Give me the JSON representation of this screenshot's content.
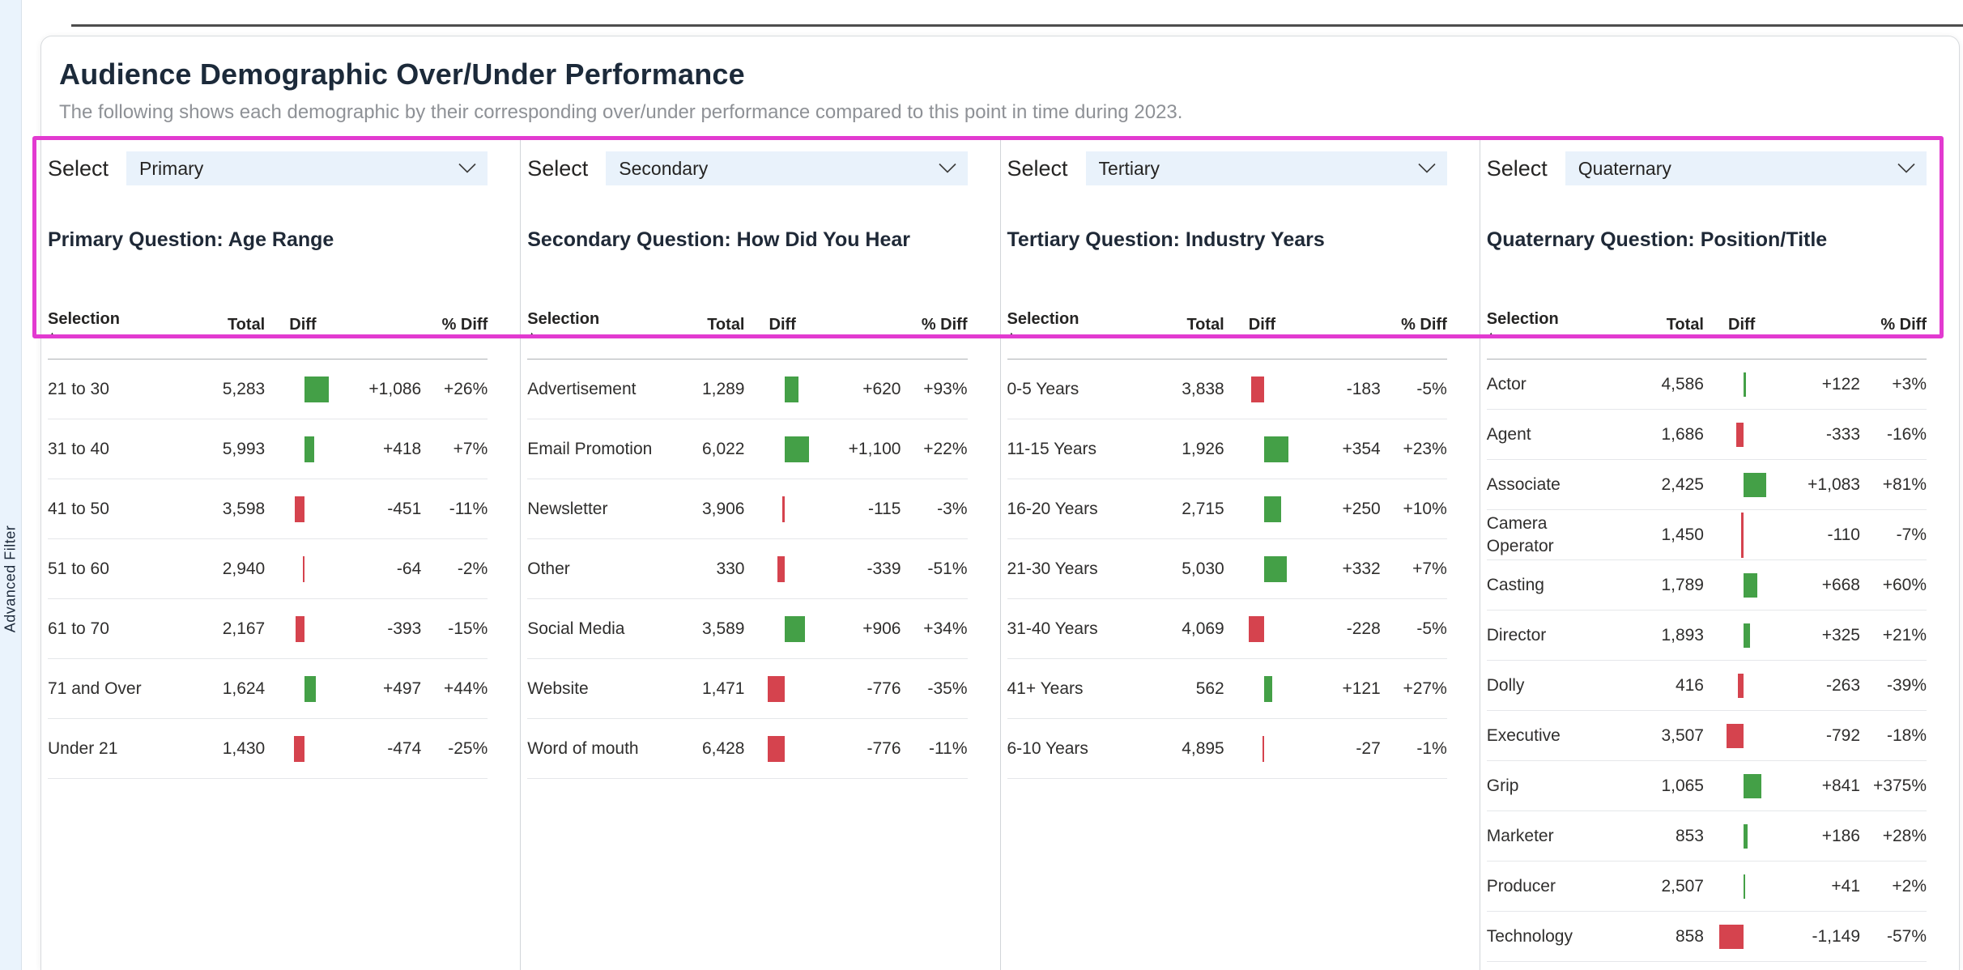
{
  "page": {
    "title": "Audience Demographic Over/Under Performance",
    "subtitle": "The following shows each demographic by their corresponding over/under performance compared to this point in time during 2023."
  },
  "left_tab": {
    "label": "Advanced Filter"
  },
  "select_label": "Select",
  "table_headers": {
    "selection": "Selection",
    "total": "Total",
    "diff": "Diff",
    "pct_diff": "% Diff",
    "sort_icon": "▲"
  },
  "colors": {
    "positive_bar": "#44a047",
    "negative_bar": "#d5434e",
    "highlight_border": "#e23ad0",
    "dropdown_bg": "#e9f2fb"
  },
  "panels": [
    {
      "select_value": "Primary",
      "question": "Primary Question: Age Range",
      "rows": [
        {
          "selection": "21 to 30",
          "total": "5,283",
          "diff": "+1,086",
          "pct": "+26%"
        },
        {
          "selection": "31 to 40",
          "total": "5,993",
          "diff": "+418",
          "pct": "+7%"
        },
        {
          "selection": "41 to 50",
          "total": "3,598",
          "diff": "-451",
          "pct": "-11%"
        },
        {
          "selection": "51 to 60",
          "total": "2,940",
          "diff": "-64",
          "pct": "-2%"
        },
        {
          "selection": "61 to 70",
          "total": "2,167",
          "diff": "-393",
          "pct": "-15%"
        },
        {
          "selection": "71 and Over",
          "total": "1,624",
          "diff": "+497",
          "pct": "+44%"
        },
        {
          "selection": "Under 21",
          "total": "1,430",
          "diff": "-474",
          "pct": "-25%"
        }
      ]
    },
    {
      "select_value": "Secondary",
      "question": "Secondary Question: How Did You Hear",
      "rows": [
        {
          "selection": "Advertisement",
          "total": "1,289",
          "diff": "+620",
          "pct": "+93%"
        },
        {
          "selection": "Email Promotion",
          "total": "6,022",
          "diff": "+1,100",
          "pct": "+22%"
        },
        {
          "selection": "Newsletter",
          "total": "3,906",
          "diff": "-115",
          "pct": "-3%"
        },
        {
          "selection": "Other",
          "total": "330",
          "diff": "-339",
          "pct": "-51%"
        },
        {
          "selection": "Social Media",
          "total": "3,589",
          "diff": "+906",
          "pct": "+34%"
        },
        {
          "selection": "Website",
          "total": "1,471",
          "diff": "-776",
          "pct": "-35%"
        },
        {
          "selection": "Word of mouth",
          "total": "6,428",
          "diff": "-776",
          "pct": "-11%"
        }
      ]
    },
    {
      "select_value": "Tertiary",
      "question": "Tertiary Question: Industry Years",
      "rows": [
        {
          "selection": "0-5 Years",
          "total": "3,838",
          "diff": "-183",
          "pct": "-5%"
        },
        {
          "selection": "11-15 Years",
          "total": "1,926",
          "diff": "+354",
          "pct": "+23%"
        },
        {
          "selection": "16-20 Years",
          "total": "2,715",
          "diff": "+250",
          "pct": "+10%"
        },
        {
          "selection": "21-30 Years",
          "total": "5,030",
          "diff": "+332",
          "pct": "+7%"
        },
        {
          "selection": "31-40 Years",
          "total": "4,069",
          "diff": "-228",
          "pct": "-5%"
        },
        {
          "selection": "41+ Years",
          "total": "562",
          "diff": "+121",
          "pct": "+27%"
        },
        {
          "selection": "6-10 Years",
          "total": "4,895",
          "diff": "-27",
          "pct": "-1%"
        }
      ]
    },
    {
      "select_value": "Quaternary",
      "question": "Quaternary Question: Position/Title",
      "rows": [
        {
          "selection": "Actor",
          "total": "4,586",
          "diff": "+122",
          "pct": "+3%"
        },
        {
          "selection": "Agent",
          "total": "1,686",
          "diff": "-333",
          "pct": "-16%"
        },
        {
          "selection": "Associate",
          "total": "2,425",
          "diff": "+1,083",
          "pct": "+81%"
        },
        {
          "selection": "Camera Operator",
          "total": "1,450",
          "diff": "-110",
          "pct": "-7%"
        },
        {
          "selection": "Casting",
          "total": "1,789",
          "diff": "+668",
          "pct": "+60%"
        },
        {
          "selection": "Director",
          "total": "1,893",
          "diff": "+325",
          "pct": "+21%"
        },
        {
          "selection": "Dolly",
          "total": "416",
          "diff": "-263",
          "pct": "-39%"
        },
        {
          "selection": "Executive",
          "total": "3,507",
          "diff": "-792",
          "pct": "-18%"
        },
        {
          "selection": "Grip",
          "total": "1,065",
          "diff": "+841",
          "pct": "+375%"
        },
        {
          "selection": "Marketer",
          "total": "853",
          "diff": "+186",
          "pct": "+28%"
        },
        {
          "selection": "Producer",
          "total": "2,507",
          "diff": "+41",
          "pct": "+2%"
        },
        {
          "selection": "Technology",
          "total": "858",
          "diff": "-1,149",
          "pct": "-57%"
        }
      ]
    }
  ]
}
